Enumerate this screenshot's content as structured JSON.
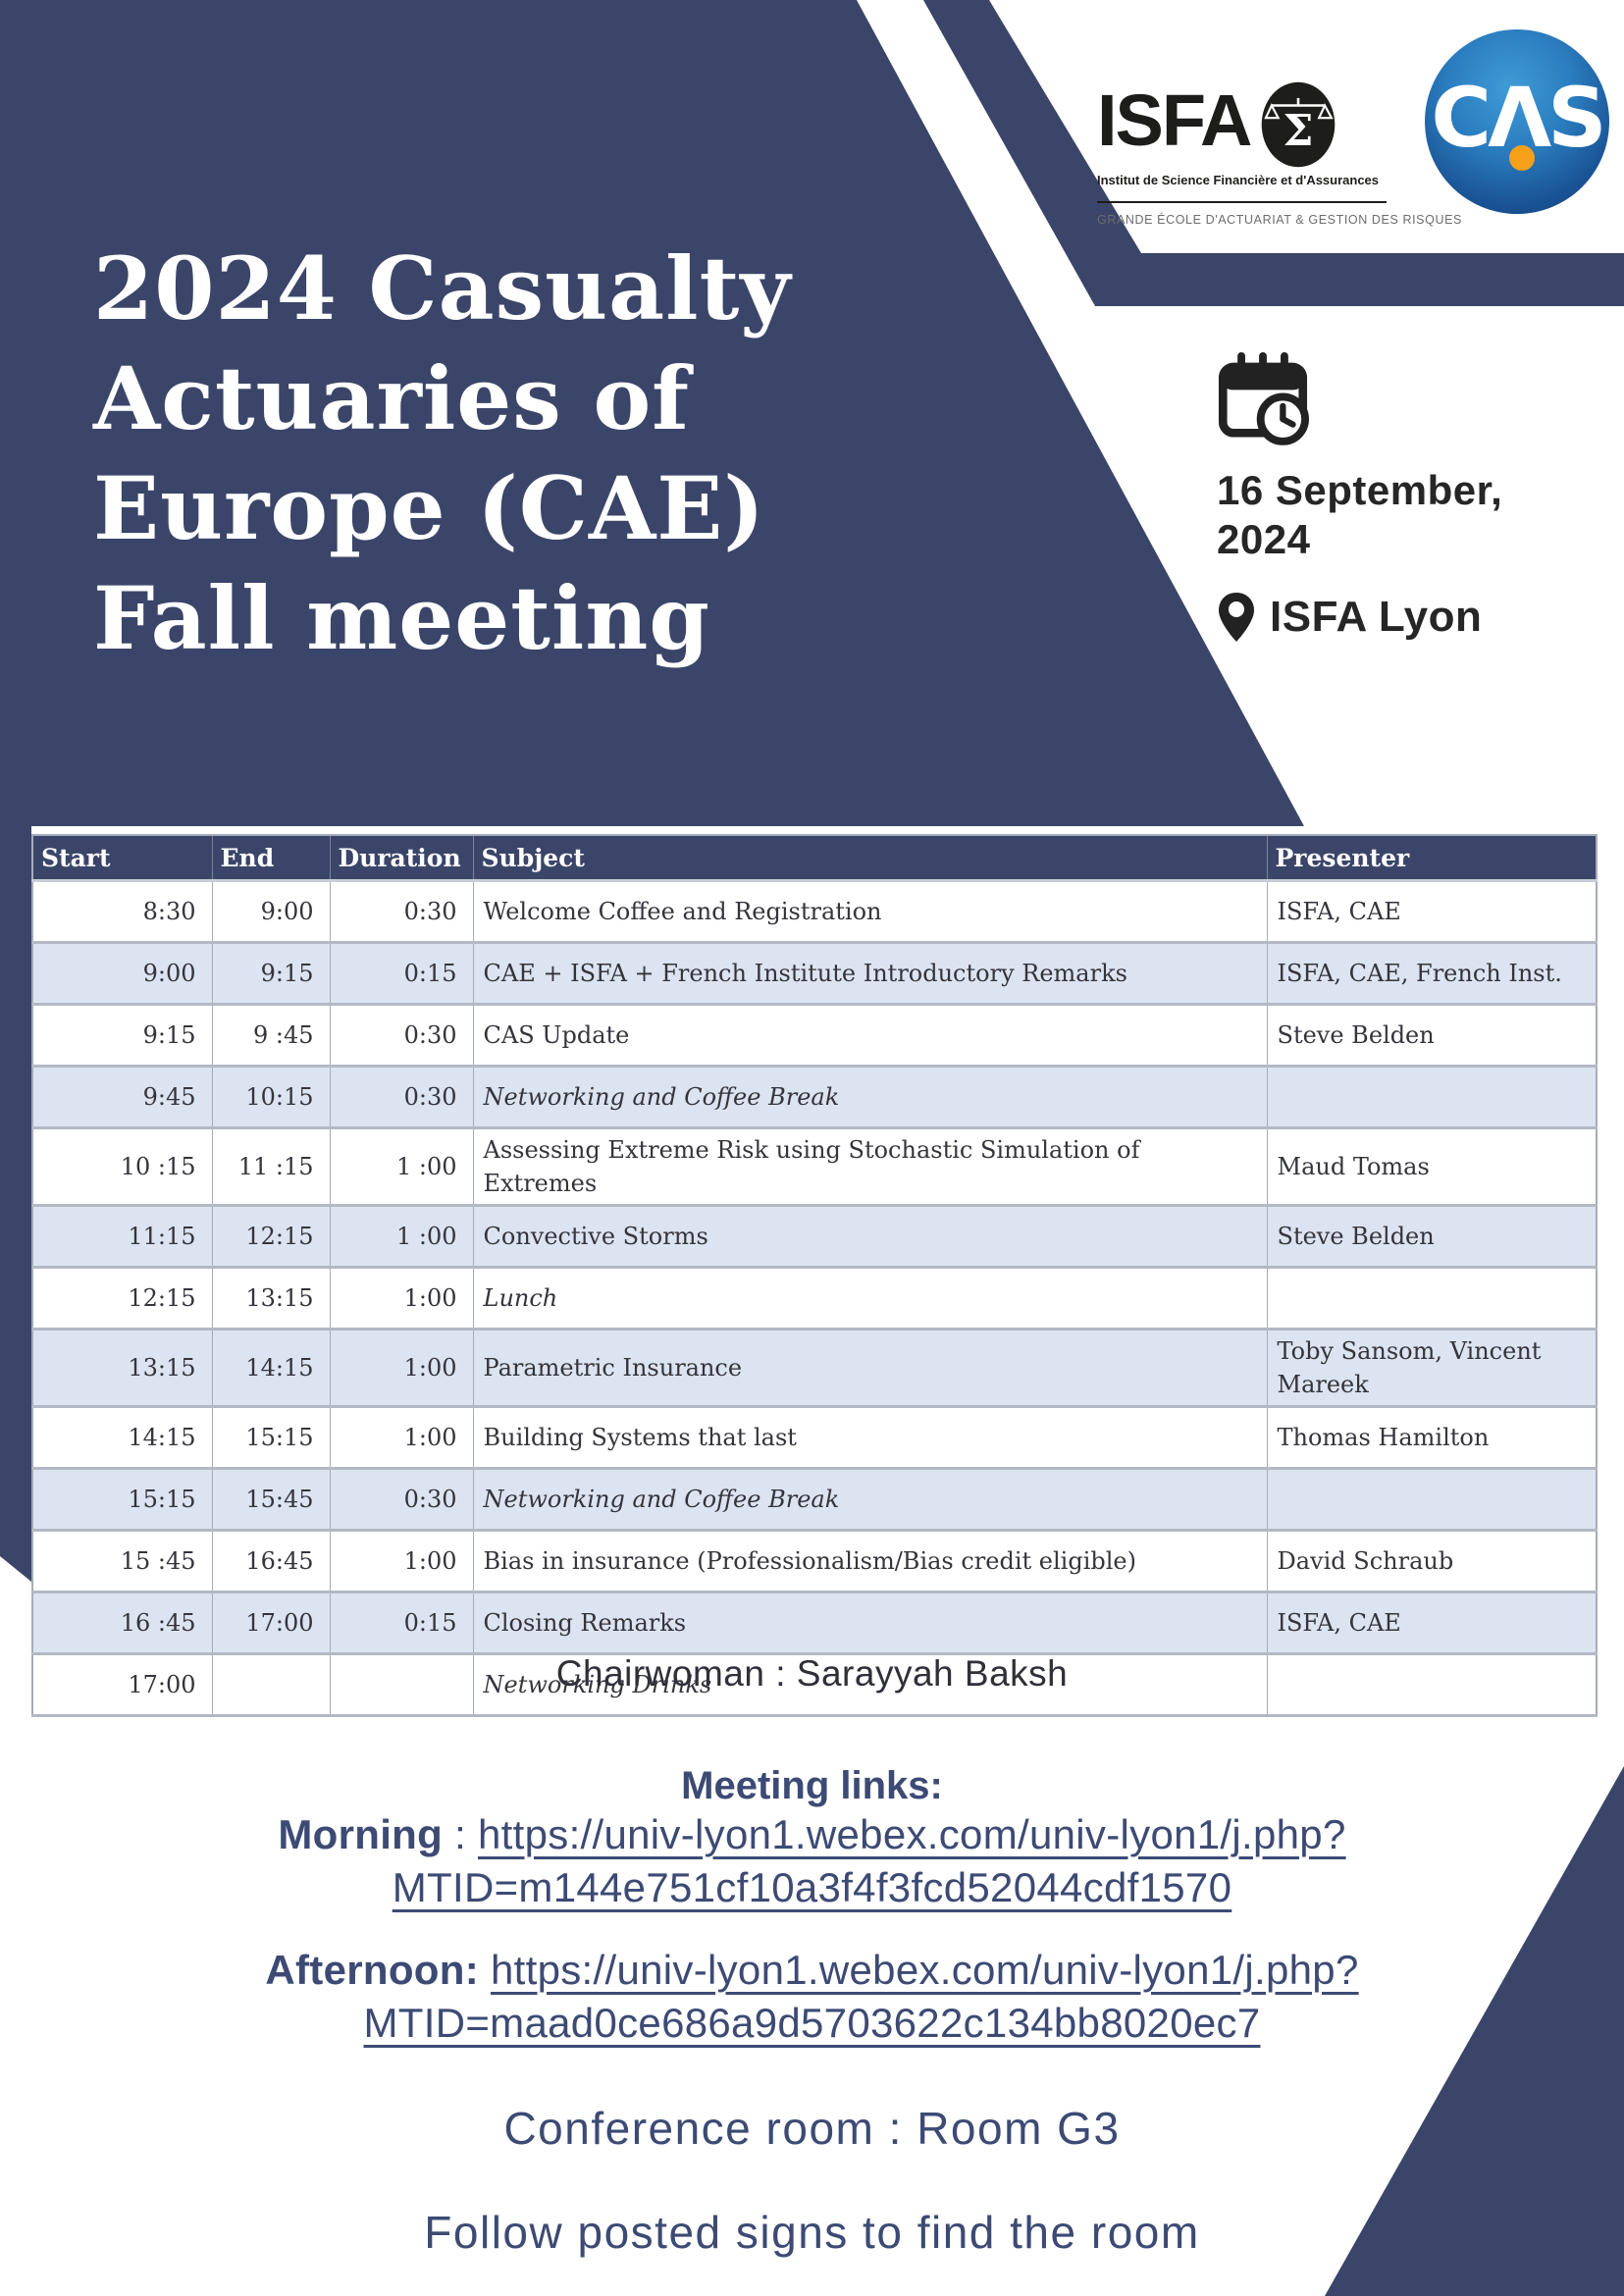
{
  "title": {
    "lines": [
      "2024 Casualty",
      "Actuaries of",
      "Europe (CAE)",
      "Fall meeting"
    ]
  },
  "logos": {
    "isfa": {
      "name": "ISFA",
      "sigma": "Σ",
      "subtitle": "Institut de Science Financière et d'Assurances",
      "tagline": "GRANDE ÉCOLE D'ACTUARIAT & GESTION DES RISQUES"
    },
    "cas": {
      "c": "C",
      "a": "Λ",
      "s": "S"
    }
  },
  "event": {
    "date_line1": "16 September,",
    "date_line2": "2024",
    "location": "ISFA Lyon"
  },
  "schedule": {
    "headers": [
      "Start",
      "End",
      "Duration",
      "Subject",
      "Presenter"
    ],
    "rows": [
      {
        "start": "8:30",
        "end": "9:00",
        "duration": "0:30",
        "subject": "Welcome Coffee and Registration",
        "presenter": "ISFA, CAE",
        "italic": false
      },
      {
        "start": "9:00",
        "end": "9:15",
        "duration": "0:15",
        "subject": "CAE + ISFA + French Institute Introductory Remarks",
        "presenter": "ISFA, CAE, French Inst.",
        "italic": false
      },
      {
        "start": "9:15",
        "end": "9 :45",
        "duration": "0:30",
        "subject": "CAS Update",
        "presenter": "Steve Belden",
        "italic": false
      },
      {
        "start": "9:45",
        "end": "10:15",
        "duration": "0:30",
        "subject": "Networking and Coffee Break",
        "presenter": "",
        "italic": true
      },
      {
        "start": "10 :15",
        "end": "11 :15",
        "duration": "1 :00",
        "subject": "Assessing Extreme Risk using Stochastic Simulation of Extremes",
        "presenter": "Maud Tomas",
        "italic": false
      },
      {
        "start": "11:15",
        "end": "12:15",
        "duration": "1 :00",
        "subject": "Convective Storms",
        "presenter": "Steve Belden",
        "italic": false
      },
      {
        "start": "12:15",
        "end": "13:15",
        "duration": "1:00",
        "subject": "Lunch",
        "presenter": "",
        "italic": true
      },
      {
        "start": "13:15",
        "end": "14:15",
        "duration": "1:00",
        "subject": "Parametric Insurance",
        "presenter": "Toby Sansom, Vincent Mareek",
        "italic": false
      },
      {
        "start": "14:15",
        "end": "15:15",
        "duration": "1:00",
        "subject": "Building Systems that last",
        "presenter": "Thomas Hamilton",
        "italic": false
      },
      {
        "start": "15:15",
        "end": "15:45",
        "duration": "0:30",
        "subject": "Networking and Coffee Break",
        "presenter": "",
        "italic": true
      },
      {
        "start": "15 :45",
        "end": "16:45",
        "duration": "1:00",
        "subject": "Bias in insurance (Professionalism/Bias credit eligible)",
        "presenter": "David Schraub",
        "italic": false
      },
      {
        "start": "16 :45",
        "end": "17:00",
        "duration": "0:15",
        "subject": "Closing Remarks",
        "presenter": "ISFA, CAE",
        "italic": false
      },
      {
        "start": "17:00",
        "end": "",
        "duration": "",
        "subject": "Networking Drinks",
        "presenter": "",
        "italic": true
      }
    ]
  },
  "footer": {
    "chairwoman": "Chairwoman : Sarayyah Baksh",
    "meeting_links_title": "Meeting links:",
    "morning_label": "Morning",
    "morning_sep": " : ",
    "link_base": "https://univ-lyon1.webex.com/univ-lyon1/j.php?",
    "morning_mtid": "MTID=m144e751cf10a3f4f3fcd52044cdf1570",
    "afternoon_label": "Afternoon:",
    "afternoon_sep": " ",
    "afternoon_mtid": "MTID=maad0ce686a9d5703622c134bb8020ec7",
    "conference_room": "Conference room : Room G3",
    "follow_signs": "Follow posted signs to find the room"
  },
  "colors": {
    "navy": "#3a4569",
    "row_alt": "#dce3f1",
    "link": "#3c4a74",
    "cas_blue": "#2272b4",
    "cas_orange": "#f6a01a"
  }
}
